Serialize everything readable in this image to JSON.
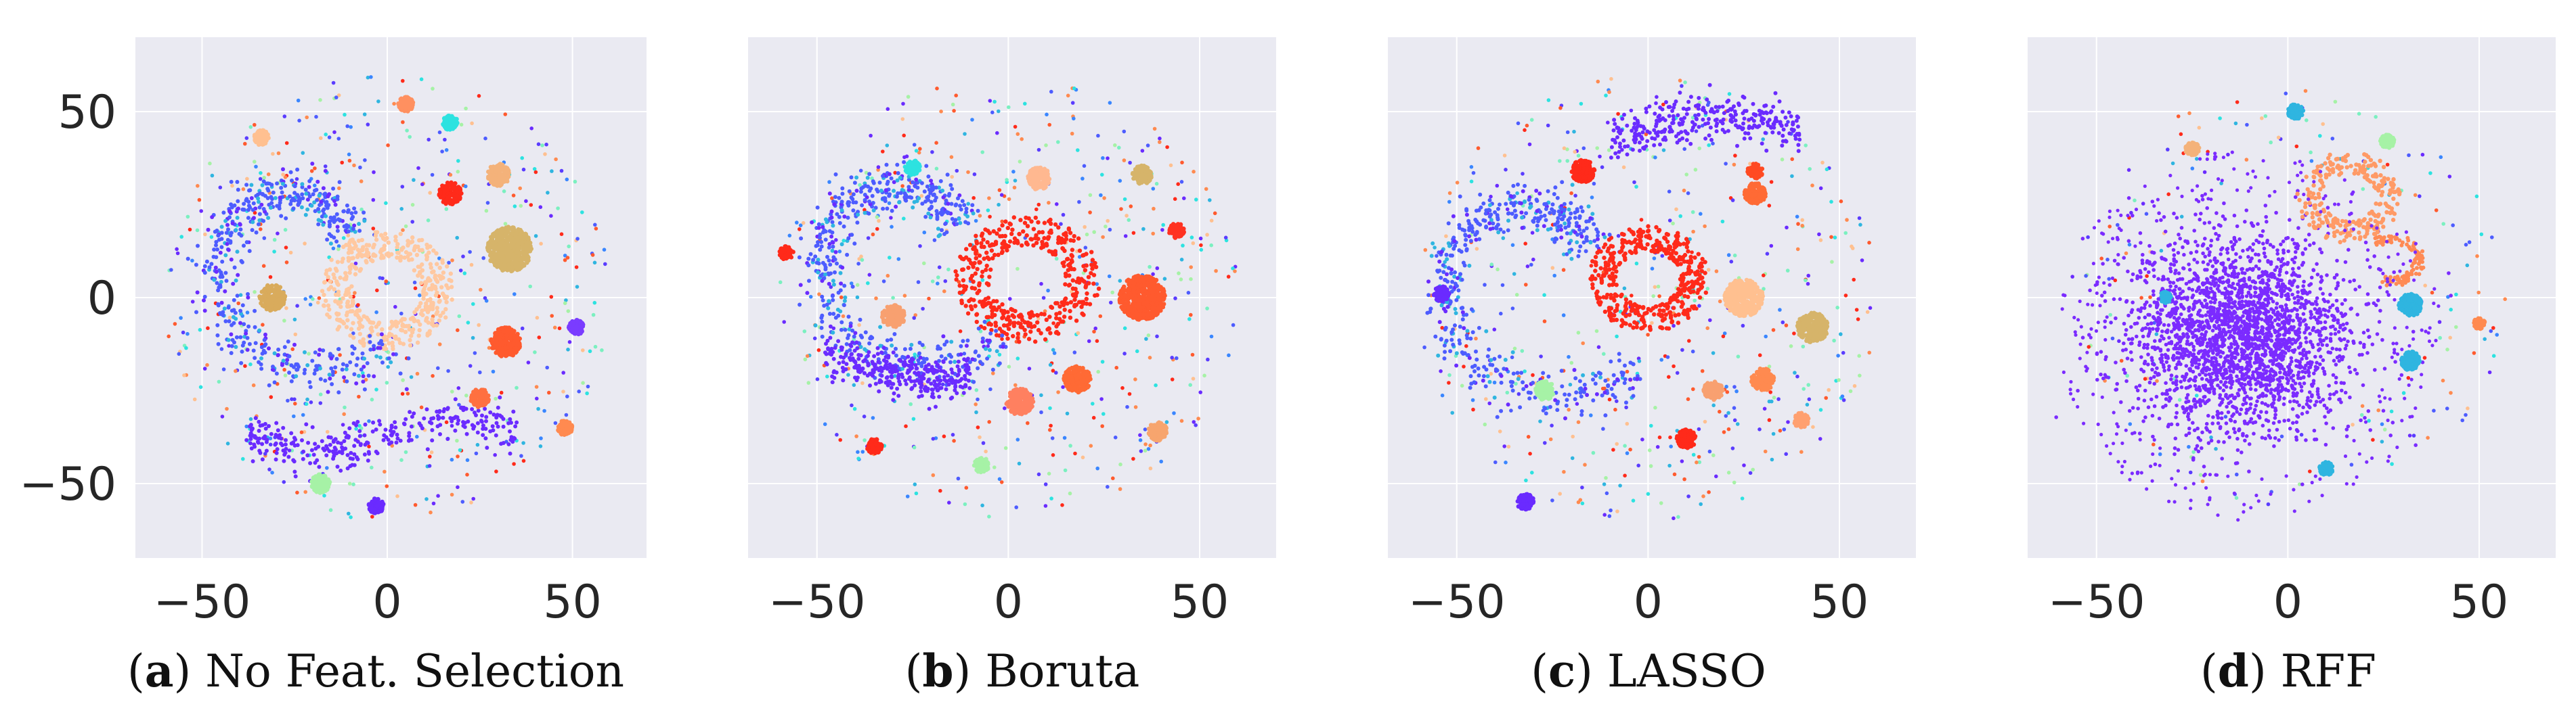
{
  "chart_data": [
    {
      "type": "scatter",
      "panel": "a",
      "caption": "No Feat. Selection",
      "xlim": [
        -68,
        70
      ],
      "ylim": [
        -70,
        70
      ],
      "xticks": [
        -50,
        0,
        50
      ],
      "yticks": [
        50,
        0,
        -50
      ],
      "grid": true,
      "layout": "ring",
      "clusters": [
        {
          "x": 33,
          "y": 13,
          "r": 6,
          "color": "#d6b46a"
        },
        {
          "x": 17,
          "y": 28,
          "r": 3,
          "color": "#ff2a1a"
        },
        {
          "x": 32,
          "y": -12,
          "r": 4,
          "color": "#ff5a2e"
        },
        {
          "x": 30,
          "y": 33,
          "r": 3,
          "color": "#f4b27a"
        },
        {
          "x": -31,
          "y": 0,
          "r": 3.5,
          "color": "#d9ab5c"
        },
        {
          "x": 25,
          "y": -27,
          "r": 2.5,
          "color": "#ff7040"
        },
        {
          "x": -18,
          "y": -50,
          "r": 2.5,
          "color": "#a6f2a6"
        },
        {
          "x": -3,
          "y": -56,
          "r": 2,
          "color": "#6a2bff"
        },
        {
          "x": 17,
          "y": 47,
          "r": 2,
          "color": "#2de2e0"
        },
        {
          "x": 51,
          "y": -8,
          "r": 2,
          "color": "#7a3cff"
        },
        {
          "x": 48,
          "y": -35,
          "r": 2,
          "color": "#ff8a50"
        },
        {
          "x": -34,
          "y": 43,
          "r": 2,
          "color": "#ffc090"
        },
        {
          "x": 5,
          "y": 52,
          "r": 2,
          "color": "#ff9060"
        }
      ],
      "features": [
        {
          "kind": "dense-ring",
          "x": 0,
          "y": 2,
          "r": 17,
          "color": "#ffc8a0"
        },
        {
          "kind": "swirl",
          "cx": -22,
          "cy": 10,
          "radius": 28,
          "color": "#4d5cff"
        },
        {
          "kind": "band",
          "y": -37,
          "x0": -38,
          "x1": 35,
          "color": "#6a2bff"
        }
      ]
    },
    {
      "type": "scatter",
      "panel": "b",
      "caption": "Boruta",
      "xlim": [
        -68,
        70
      ],
      "ylim": [
        -70,
        70
      ],
      "xticks": [
        -50,
        0,
        50
      ],
      "yticks": [
        50,
        0,
        -50
      ],
      "grid": true,
      "layout": "ring",
      "clusters": [
        {
          "x": 35,
          "y": 0,
          "r": 6,
          "color": "#ff5a2e"
        },
        {
          "x": 18,
          "y": -22,
          "r": 3.5,
          "color": "#ff6a35"
        },
        {
          "x": 8,
          "y": 32,
          "r": 3,
          "color": "#ffb890"
        },
        {
          "x": -30,
          "y": -5,
          "r": 3,
          "color": "#f8a070"
        },
        {
          "x": 3,
          "y": -28,
          "r": 3.5,
          "color": "#ff8060"
        },
        {
          "x": 35,
          "y": 33,
          "r": 2.5,
          "color": "#d6b46a"
        },
        {
          "x": 39,
          "y": -36,
          "r": 2.5,
          "color": "#f7a56e"
        },
        {
          "x": -35,
          "y": -40,
          "r": 2,
          "color": "#ff2a1a"
        },
        {
          "x": -7,
          "y": -45,
          "r": 2,
          "color": "#a6f2a6"
        },
        {
          "x": -25,
          "y": 35,
          "r": 2,
          "color": "#2de2e0"
        },
        {
          "x": 44,
          "y": 18,
          "r": 2,
          "color": "#ff3322"
        },
        {
          "x": -58,
          "y": 12,
          "r": 1.8,
          "color": "#ff2a1a"
        }
      ],
      "features": [
        {
          "kind": "dense-ring",
          "x": 5,
          "y": 5,
          "r": 18,
          "color": "#ff2a1a"
        },
        {
          "kind": "swirl",
          "cx": -25,
          "cy": 12,
          "radius": 28,
          "color": "#4d5cff"
        },
        {
          "kind": "band",
          "y": -18,
          "x0": -48,
          "x1": -10,
          "color": "#6a2bff"
        }
      ]
    },
    {
      "type": "scatter",
      "panel": "c",
      "caption": "LASSO",
      "xlim": [
        -68,
        70
      ],
      "ylim": [
        -70,
        70
      ],
      "xticks": [
        -50,
        0,
        50
      ],
      "yticks": [
        50,
        0,
        -50
      ],
      "grid": true,
      "layout": "ring",
      "clusters": [
        {
          "x": 25,
          "y": 0,
          "r": 5,
          "color": "#ffc090"
        },
        {
          "x": 43,
          "y": -8,
          "r": 4,
          "color": "#d6b46a"
        },
        {
          "x": -17,
          "y": 34,
          "r": 3,
          "color": "#ff2a1a"
        },
        {
          "x": 28,
          "y": 28,
          "r": 2.8,
          "color": "#ff6a35"
        },
        {
          "x": 30,
          "y": -22,
          "r": 3,
          "color": "#ff8a50"
        },
        {
          "x": 17,
          "y": -25,
          "r": 2.5,
          "color": "#f8a070"
        },
        {
          "x": 10,
          "y": -38,
          "r": 2.5,
          "color": "#ff2a1a"
        },
        {
          "x": -27,
          "y": -25,
          "r": 2.5,
          "color": "#a6f2a6"
        },
        {
          "x": -32,
          "y": -55,
          "r": 2.2,
          "color": "#6a2bff"
        },
        {
          "x": 28,
          "y": 34,
          "r": 2,
          "color": "#ff4a22"
        },
        {
          "x": -54,
          "y": 1,
          "r": 2,
          "color": "#6a2bff"
        },
        {
          "x": 40,
          "y": -33,
          "r": 2,
          "color": "#ffa070"
        }
      ],
      "features": [
        {
          "kind": "dense-ring",
          "x": 0,
          "y": 5,
          "r": 15,
          "color": "#ff2a1a"
        },
        {
          "kind": "swirl",
          "cx": -28,
          "cy": 5,
          "radius": 30,
          "color": "#4d5cff"
        },
        {
          "kind": "band",
          "y": 45,
          "x0": -10,
          "x1": 40,
          "color": "#6a2bff"
        }
      ]
    },
    {
      "type": "scatter",
      "panel": "d",
      "caption": "RFF",
      "xlim": [
        -68,
        70
      ],
      "ylim": [
        -70,
        70
      ],
      "xticks": [
        -50,
        0,
        50
      ],
      "yticks": [
        50,
        0,
        -50
      ],
      "grid": true,
      "layout": "blob",
      "clusters": [
        {
          "x": 32,
          "y": -2,
          "r": 3,
          "color": "#2fb5e0"
        },
        {
          "x": 32,
          "y": -17,
          "r": 2.5,
          "color": "#2fb5e0"
        },
        {
          "x": 26,
          "y": 42,
          "r": 1.8,
          "color": "#a6f2a6"
        },
        {
          "x": 2,
          "y": 50,
          "r": 2,
          "color": "#2fb5e0"
        },
        {
          "x": -25,
          "y": 40,
          "r": 1.8,
          "color": "#f4b27a"
        },
        {
          "x": 10,
          "y": -46,
          "r": 1.8,
          "color": "#2fb5e0"
        },
        {
          "x": -32,
          "y": 0,
          "r": 1.5,
          "color": "#2fb5e0"
        },
        {
          "x": 50,
          "y": -7,
          "r": 1.5,
          "color": "#ff8a50"
        }
      ],
      "features": [
        {
          "kind": "dense-blob",
          "x": -12,
          "y": -10,
          "rx": 34,
          "ry": 31,
          "color": "#7b2bff"
        },
        {
          "kind": "ring",
          "x": 16,
          "y": 27,
          "r": 13,
          "color": "#ff9a66"
        },
        {
          "kind": "arc",
          "x": 27,
          "y": 18,
          "r": 8,
          "color": "#ff8a55"
        },
        {
          "kind": "scatter-edge",
          "x": -10,
          "y": -10,
          "r": 50,
          "color": "#7b2bff"
        }
      ]
    }
  ],
  "captions": [
    {
      "letter": "a",
      "text": "No Feat. Selection"
    },
    {
      "letter": "b",
      "text": "Boruta"
    },
    {
      "letter": "c",
      "text": "LASSO"
    },
    {
      "letter": "d",
      "text": "RFF"
    }
  ]
}
